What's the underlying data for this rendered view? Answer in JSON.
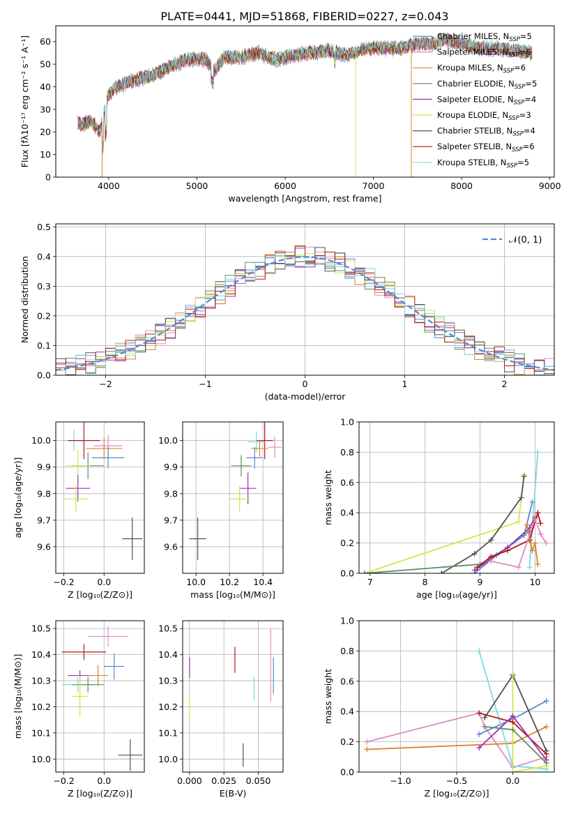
{
  "figure_title": "PLATE=0441, MJD=51868, FIBERID=0227, z=0.043",
  "colors": {
    "chabrier_miles": "#5b84d6",
    "salpeter_miles": "#e08ac4",
    "kroupa_miles": "#d9822b",
    "chabrier_elodie": "#5e8c5e",
    "salpeter_elodie": "#9b30b3",
    "kroupa_elodie": "#cfe64a",
    "chabrier_stelib": "#505050",
    "salpeter_stelib": "#b01818",
    "kroupa_stelib": "#7fd8dc",
    "gaussian": "#5b84d6",
    "grid": "#b0b0b0"
  },
  "chart_data": [
    {
      "type": "line",
      "panel": "spectrum",
      "xlabel": "wavelength [Angstrom, rest frame]",
      "ylabel": "Flux [fλ10⁻¹⁷ erg cm⁻² s⁻¹ A⁻¹]",
      "xlim": [
        3400,
        9050
      ],
      "ylim": [
        0,
        67
      ],
      "xticks": [
        4000,
        5000,
        6000,
        7000,
        8000,
        9000
      ],
      "yticks": [
        0,
        10,
        20,
        30,
        40,
        50,
        60
      ],
      "legend_placement": "right",
      "series": [
        {
          "name": "Chabrier MILES, N",
          "sub": "SSP",
          "suffix": "=5",
          "color_key": "chabrier_miles"
        },
        {
          "name": "Salpeter MILES, N",
          "sub": "SSP",
          "suffix": "=6",
          "color_key": "salpeter_miles"
        },
        {
          "name": "Kroupa MILES, N",
          "sub": "SSP",
          "suffix": "=6",
          "color_key": "kroupa_miles"
        },
        {
          "name": "Chabrier ELODIE, N",
          "sub": "SSP",
          "suffix": "=5",
          "color_key": "chabrier_elodie"
        },
        {
          "name": "Salpeter ELODIE, N",
          "sub": "SSP",
          "suffix": "=4",
          "color_key": "salpeter_elodie"
        },
        {
          "name": "Kroupa ELODIE, N",
          "sub": "SSP",
          "suffix": "=3",
          "color_key": "kroupa_elodie"
        },
        {
          "name": "Chabrier STELIB, N",
          "sub": "SSP",
          "suffix": "=4",
          "color_key": "chabrier_stelib"
        },
        {
          "name": "Salpeter STELIB, N",
          "sub": "SSP",
          "suffix": "=6",
          "color_key": "salpeter_stelib"
        },
        {
          "name": "Kroupa STELIB, N",
          "sub": "SSP",
          "suffix": "=5",
          "color_key": "kroupa_stelib"
        }
      ],
      "continuum": {
        "x": [
          3650,
          3700,
          3800,
          3900,
          4000,
          4100,
          4300,
          4500,
          4700,
          4900,
          5100,
          5200,
          5300,
          5500,
          5700,
          5900,
          6100,
          6300,
          6500,
          6700,
          6900,
          7100,
          7300,
          7500,
          7700,
          7800,
          8000,
          8200,
          8400,
          8600,
          8800
        ],
        "y": [
          24,
          23,
          25,
          20,
          37,
          40,
          43,
          45,
          49,
          52,
          52,
          47,
          53,
          53,
          55,
          52,
          54,
          55,
          56,
          54,
          57,
          57,
          57,
          59,
          59,
          61,
          59,
          57,
          57,
          56,
          55
        ]
      },
      "drops": [
        {
          "x": 3925,
          "color_key": "kroupa_miles"
        },
        {
          "x": 6800,
          "color_key": "kroupa_elodie"
        },
        {
          "x": 7430,
          "color_key": "kroupa_miles"
        }
      ]
    },
    {
      "type": "bar",
      "panel": "residual_histogram",
      "xlabel": "(data-model)/error",
      "ylabel": "Normed distribution",
      "xlim": [
        -2.5,
        2.5
      ],
      "ylim": [
        0,
        0.51
      ],
      "xticks": [
        -2,
        -1,
        0,
        1,
        2
      ],
      "yticks": [
        0.0,
        0.1,
        0.2,
        0.3,
        0.4,
        0.5
      ],
      "grid": true,
      "legend_placement": "top-right",
      "gaussian_label": "𝒩(0, 1)",
      "bin_width": 0.1
    },
    {
      "type": "scatter",
      "panel": "age_vs_Z",
      "xlabel": "Z [log₁₀(Z/Z⊙)]",
      "ylabel": "age  [log₁₀(age/yr)]",
      "xlim": [
        -0.24,
        0.2
      ],
      "ylim": [
        9.5,
        10.07
      ],
      "xticks": [
        -0.2,
        0.0
      ],
      "yticks": [
        9.6,
        9.7,
        9.8,
        9.9,
        10.0
      ],
      "grid": true,
      "points": [
        {
          "x": 0.02,
          "y": 9.98,
          "xerr": 0.07,
          "yerr": 0.04,
          "color_key": "salpeter_miles"
        },
        {
          "x": 0.0,
          "y": 9.97,
          "xerr": 0.09,
          "yerr": 0.04,
          "color_key": "kroupa_miles"
        },
        {
          "x": 0.02,
          "y": 9.935,
          "xerr": 0.08,
          "yerr": 0.04,
          "color_key": "chabrier_miles"
        },
        {
          "x": -0.15,
          "y": 10.0,
          "xerr": 0.05,
          "yerr": 0.04,
          "color_key": "kroupa_stelib"
        },
        {
          "x": -0.1,
          "y": 10.0,
          "xerr": 0.08,
          "yerr": 0.07,
          "color_key": "salpeter_stelib"
        },
        {
          "x": -0.08,
          "y": 9.905,
          "xerr": 0.08,
          "yerr": 0.05,
          "color_key": "chabrier_elodie"
        },
        {
          "x": -0.13,
          "y": 9.905,
          "xerr": 0.06,
          "yerr": 0.06,
          "color_key": "kroupa_elodie"
        },
        {
          "x": -0.13,
          "y": 9.82,
          "xerr": 0.06,
          "yerr": 0.05,
          "color_key": "salpeter_elodie"
        },
        {
          "x": -0.14,
          "y": 9.78,
          "xerr": 0.06,
          "yerr": 0.05,
          "color_key": "kroupa_elodie"
        },
        {
          "x": 0.14,
          "y": 9.63,
          "xerr": 0.05,
          "yerr": 0.08,
          "color_key": "chabrier_stelib"
        }
      ]
    },
    {
      "type": "scatter",
      "panel": "age_vs_mass",
      "xlabel": "mass [log₁₀(M/M⊙)]",
      "ylabel": "",
      "xlim": [
        9.92,
        10.52
      ],
      "ylim": [
        9.5,
        10.07
      ],
      "xticks": [
        10.0,
        10.2,
        10.4
      ],
      "yticks": [
        9.6,
        9.7,
        9.8,
        9.9,
        10.0
      ],
      "grid": true,
      "points": [
        {
          "x": 10.41,
          "y": 10.0,
          "xerr": 0.05,
          "yerr": 0.07,
          "color_key": "salpeter_stelib"
        },
        {
          "x": 10.47,
          "y": 9.975,
          "xerr": 0.04,
          "yerr": 0.04,
          "color_key": "salpeter_miles"
        },
        {
          "x": 10.36,
          "y": 9.995,
          "xerr": 0.05,
          "yerr": 0.04,
          "color_key": "kroupa_stelib"
        },
        {
          "x": 10.38,
          "y": 9.97,
          "xerr": 0.05,
          "yerr": 0.03,
          "color_key": "kroupa_miles"
        },
        {
          "x": 10.35,
          "y": 9.935,
          "xerr": 0.05,
          "yerr": 0.04,
          "color_key": "chabrier_miles"
        },
        {
          "x": 10.27,
          "y": 9.905,
          "xerr": 0.06,
          "yerr": 0.04,
          "color_key": "chabrier_elodie"
        },
        {
          "x": 10.31,
          "y": 9.82,
          "xerr": 0.05,
          "yerr": 0.06,
          "color_key": "salpeter_elodie"
        },
        {
          "x": 10.26,
          "y": 9.78,
          "xerr": 0.06,
          "yerr": 0.05,
          "color_key": "kroupa_elodie"
        },
        {
          "x": 10.01,
          "y": 9.63,
          "xerr": 0.05,
          "yerr": 0.08,
          "color_key": "chabrier_stelib"
        }
      ]
    },
    {
      "type": "line",
      "panel": "mass_weight_vs_age",
      "xlabel": "age  [log₁₀(age/yr)]",
      "ylabel": "mass weight",
      "xlim": [
        6.8,
        10.35
      ],
      "ylim": [
        0,
        1
      ],
      "xticks": [
        7,
        8,
        9,
        10
      ],
      "yticks": [
        0.0,
        0.2,
        0.4,
        0.6,
        0.8,
        1.0
      ],
      "grid": true,
      "series": [
        {
          "color_key": "kroupa_elodie",
          "x": [
            6.9,
            9.7,
            9.8
          ],
          "y": [
            0.0,
            0.34,
            0.65
          ]
        },
        {
          "color_key": "chabrier_stelib",
          "x": [
            8.3,
            8.9,
            9.2,
            9.75,
            9.8
          ],
          "y": [
            0.0,
            0.13,
            0.22,
            0.5,
            0.64
          ]
        },
        {
          "color_key": "chabrier_elodie",
          "x": [
            6.9,
            9.0,
            9.5,
            9.9
          ],
          "y": [
            0.0,
            0.06,
            0.17,
            0.28
          ]
        },
        {
          "color_key": "kroupa_stelib",
          "x": [
            9.9,
            9.95,
            10.05
          ],
          "y": [
            0.04,
            0.3,
            0.8
          ]
        },
        {
          "color_key": "chabrier_miles",
          "x": [
            8.9,
            9.3,
            9.8,
            9.95
          ],
          "y": [
            0.0,
            0.12,
            0.25,
            0.47
          ]
        },
        {
          "color_key": "salpeter_elodie",
          "x": [
            8.9,
            9.5,
            9.9,
            10.0
          ],
          "y": [
            0.02,
            0.17,
            0.3,
            0.37
          ]
        },
        {
          "color_key": "salpeter_stelib",
          "x": [
            8.95,
            9.2,
            9.5,
            9.9,
            10.05,
            10.1
          ],
          "y": [
            0.04,
            0.11,
            0.15,
            0.22,
            0.4,
            0.33
          ]
        },
        {
          "color_key": "kroupa_miles",
          "x": [
            9.85,
            9.95,
            10.0,
            10.05
          ],
          "y": [
            0.32,
            0.15,
            0.2,
            0.06
          ]
        },
        {
          "color_key": "salpeter_miles",
          "x": [
            9.2,
            9.7,
            10.0,
            10.1,
            10.2
          ],
          "y": [
            0.08,
            0.04,
            0.36,
            0.26,
            0.2
          ]
        }
      ]
    },
    {
      "type": "scatter",
      "panel": "mass_vs_Z",
      "xlabel": "Z [log₁₀(Z/Z⊙)]",
      "ylabel": "mass [log₁₀(M/M⊙)]",
      "xlim": [
        -0.24,
        0.2
      ],
      "ylim": [
        9.95,
        10.53
      ],
      "xticks": [
        -0.2,
        0.0
      ],
      "yticks": [
        10.0,
        10.1,
        10.2,
        10.3,
        10.4,
        10.5
      ],
      "grid": true,
      "points": [
        {
          "x": 0.02,
          "y": 10.47,
          "xerr": 0.1,
          "yerr": 0.04,
          "color_key": "salpeter_miles"
        },
        {
          "x": -0.1,
          "y": 10.41,
          "xerr": 0.11,
          "yerr": 0.03,
          "color_key": "salpeter_stelib"
        },
        {
          "x": 0.05,
          "y": 10.355,
          "xerr": 0.05,
          "yerr": 0.05,
          "color_key": "chabrier_miles"
        },
        {
          "x": -0.12,
          "y": 10.32,
          "xerr": 0.06,
          "yerr": 0.02,
          "color_key": "salpeter_elodie"
        },
        {
          "x": -0.03,
          "y": 10.32,
          "xerr": 0.05,
          "yerr": 0.04,
          "color_key": "kroupa_miles"
        },
        {
          "x": -0.13,
          "y": 10.285,
          "xerr": 0.08,
          "yerr": 0.03,
          "color_key": "kroupa_stelib"
        },
        {
          "x": -0.08,
          "y": 10.285,
          "xerr": 0.08,
          "yerr": 0.03,
          "color_key": "chabrier_elodie"
        },
        {
          "x": -0.12,
          "y": 10.24,
          "xerr": 0.04,
          "yerr": 0.08,
          "color_key": "kroupa_elodie"
        },
        {
          "x": 0.13,
          "y": 10.015,
          "xerr": 0.06,
          "yerr": 0.06,
          "color_key": "chabrier_stelib"
        }
      ]
    },
    {
      "type": "scatter",
      "panel": "mass_vs_ebv",
      "xlabel": "E(B-V)",
      "ylabel": "",
      "xlim": [
        -0.005,
        0.068
      ],
      "ylim": [
        9.95,
        10.53
      ],
      "xticks": [
        0.0,
        0.025,
        0.05
      ],
      "xtick_labels": [
        "0.000",
        "0.025",
        "0.050"
      ],
      "yticks": [
        10.0,
        10.1,
        10.2,
        10.3,
        10.4,
        10.5
      ],
      "grid": true,
      "points": [
        {
          "x": 0.0,
          "y": 10.35,
          "yerr": 0.04,
          "color_key": "salpeter_elodie"
        },
        {
          "x": 0.0,
          "y": 10.2,
          "yerr": 0.04,
          "color_key": "kroupa_elodie"
        },
        {
          "x": 0.033,
          "y": 10.38,
          "yerr": 0.05,
          "color_key": "salpeter_stelib"
        },
        {
          "x": 0.039,
          "y": 10.015,
          "yerr": 0.045,
          "color_key": "chabrier_stelib"
        },
        {
          "x": 0.047,
          "y": 10.27,
          "yerr": 0.045,
          "color_key": "kroupa_stelib"
        },
        {
          "x": 0.059,
          "y": 10.36,
          "yerr": 0.14,
          "color_key": "salpeter_miles"
        },
        {
          "x": 0.061,
          "y": 10.32,
          "yerr": 0.07,
          "color_key": "chabrier_miles"
        }
      ]
    },
    {
      "type": "line",
      "panel": "mass_weight_vs_Z",
      "xlabel": "Z [log₁₀(Z/Z⊙)]",
      "ylabel": "mass weight",
      "xlim": [
        -1.37,
        0.37
      ],
      "ylim": [
        0,
        1
      ],
      "xticks": [
        -1.0,
        -0.5,
        0.0
      ],
      "yticks": [
        0.0,
        0.2,
        0.4,
        0.6,
        0.8,
        1.0
      ],
      "grid": true,
      "series": [
        {
          "color_key": "salpeter_miles",
          "x": [
            -1.3,
            -0.3,
            -0.25,
            0.0,
            0.3
          ],
          "y": [
            0.2,
            0.39,
            0.3,
            0.03,
            0.1
          ]
        },
        {
          "color_key": "kroupa_miles",
          "x": [
            -1.3,
            0.0,
            0.3
          ],
          "y": [
            0.15,
            0.19,
            0.3
          ]
        },
        {
          "color_key": "chabrier_miles",
          "x": [
            -0.3,
            0.0,
            0.3
          ],
          "y": [
            0.25,
            0.35,
            0.47
          ]
        },
        {
          "color_key": "kroupa_stelib",
          "x": [
            -0.3,
            0.0,
            0.3
          ],
          "y": [
            0.8,
            0.04,
            0.02
          ]
        },
        {
          "color_key": "chabrier_stelib",
          "x": [
            -0.25,
            0.0,
            0.3
          ],
          "y": [
            0.36,
            0.64,
            0.14
          ]
        },
        {
          "color_key": "kroupa_elodie",
          "x": [
            0.0,
            0.0,
            0.3
          ],
          "y": [
            0.65,
            0.0,
            0.04
          ]
        },
        {
          "color_key": "salpeter_stelib",
          "x": [
            -0.3,
            0.0,
            0.3
          ],
          "y": [
            0.39,
            0.33,
            0.12
          ]
        },
        {
          "color_key": "salpeter_elodie",
          "x": [
            -0.3,
            0.0,
            0.3
          ],
          "y": [
            0.16,
            0.37,
            0.08
          ]
        },
        {
          "color_key": "chabrier_elodie",
          "x": [
            -0.25,
            0.0,
            0.3
          ],
          "y": [
            0.3,
            0.28,
            0.06
          ]
        }
      ]
    }
  ]
}
